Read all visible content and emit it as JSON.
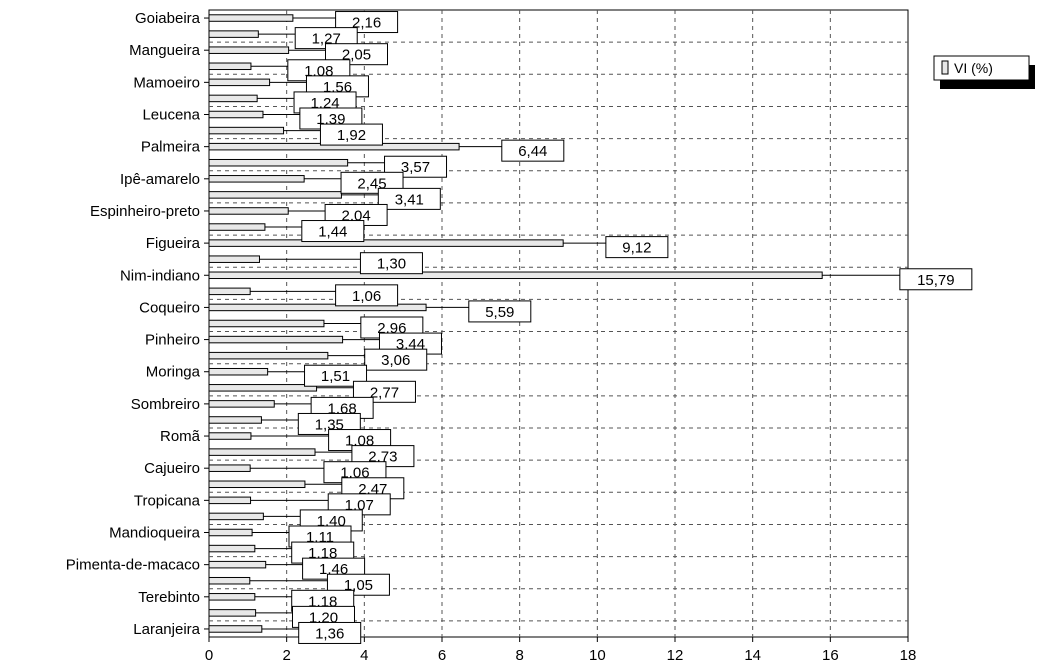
{
  "chart_data": {
    "type": "bar",
    "orientation": "horizontal",
    "xlim": [
      0,
      18
    ],
    "x_ticks": [
      "0",
      "2",
      "4",
      "6",
      "8",
      "10",
      "12",
      "14",
      "16",
      "18"
    ],
    "grid": "dashed",
    "legend_position": "top-right",
    "series": [
      {
        "name": "VI (%)",
        "color": "#e8e8e8"
      }
    ],
    "labeled_categories": [
      "Goiabeira",
      "Mangueira",
      "Mamoeiro",
      "Leucena",
      "Palmeira",
      "Ipê-amarelo",
      "Espinheiro-preto",
      "Figueira",
      "Nim-indiano",
      "Coqueiro",
      "Pinheiro",
      "Moringa",
      "Sombreiro",
      "Romã",
      "Cajueiro",
      "Tropicana",
      "Mandioqueira",
      "Pimenta-de-macaco",
      "Terebinto",
      "Laranjeira"
    ],
    "values": [
      2.16,
      1.27,
      2.05,
      1.08,
      1.56,
      1.24,
      1.39,
      1.92,
      6.44,
      3.57,
      2.45,
      3.41,
      2.04,
      1.44,
      9.12,
      1.3,
      15.79,
      1.06,
      5.59,
      2.96,
      3.44,
      3.06,
      1.51,
      2.77,
      1.68,
      1.35,
      1.08,
      2.73,
      1.06,
      2.47,
      1.07,
      1.4,
      1.11,
      1.18,
      1.46,
      1.05,
      1.18,
      1.2,
      1.36
    ],
    "value_labels": [
      "2,16",
      "1,27",
      "2,05",
      "1,08",
      "1,56",
      "1,24",
      "1,39",
      "1,92",
      "6,44",
      "3,57",
      "2,45",
      "3,41",
      "2,04",
      "1,44",
      "9,12",
      "1,30",
      "15,79",
      "1,06",
      "5,59",
      "2,96",
      "3,44",
      "3,06",
      "1,51",
      "2,77",
      "1,68",
      "1,35",
      "1,08",
      "2,73",
      "1,06",
      "2,47",
      "1,07",
      "1,40",
      "1,11",
      "1,18",
      "1,46",
      "1,05",
      "1,18",
      "1,20",
      "1,36"
    ],
    "label_offsets_x": [
      1.1,
      0.95,
      0.95,
      0.95,
      0.95,
      0.95,
      0.95,
      0.95,
      1.1,
      0.95,
      0.95,
      0.95,
      0.95,
      0.95,
      1.1,
      2.6,
      2.0,
      2.2,
      1.1,
      0.95,
      0.95,
      0.95,
      0.95,
      0.95,
      0.95,
      0.95,
      2.0,
      0.95,
      1.9,
      0.95,
      2.0,
      0.95,
      0.95,
      0.95,
      0.95,
      2.0,
      0.95,
      0.95,
      0.95
    ]
  }
}
